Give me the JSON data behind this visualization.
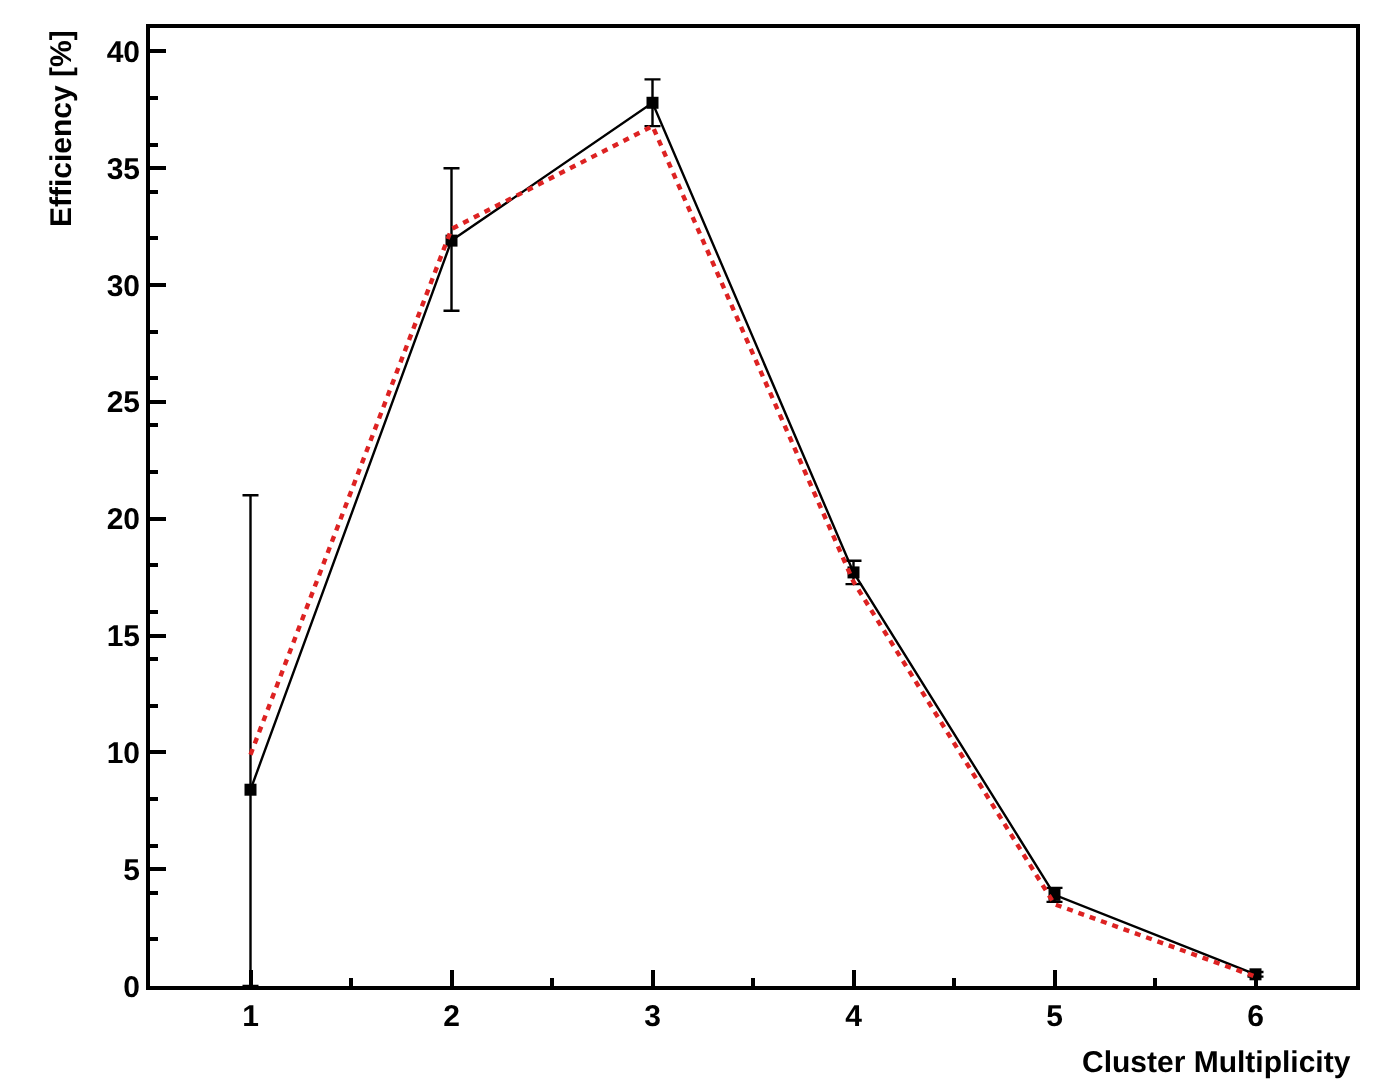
{
  "chart_data": {
    "type": "line",
    "xlabel": "Cluster Multiplicity",
    "ylabel": "Efficiency [%]",
    "x": [
      1,
      2,
      3,
      4,
      5,
      6
    ],
    "series": [
      {
        "color": "#000000",
        "values": [
          8.4,
          31.9,
          37.8,
          17.7,
          3.9,
          0.5
        ],
        "errors": [
          [
            0,
            21
          ],
          [
            28.9,
            35.0
          ],
          [
            36.8,
            38.8
          ],
          [
            17.2,
            18.2
          ],
          [
            3.6,
            4.2
          ],
          [
            0.4,
            0.6
          ]
        ],
        "marker": "square",
        "line_style": "solid"
      },
      {
        "color": "#dd2222",
        "values": [
          9.9,
          32.4,
          36.8,
          17.3,
          3.5,
          0.4
        ],
        "marker": "none",
        "line_style": "dotted"
      }
    ],
    "xlim": [
      0.5,
      6.5
    ],
    "xticks": [
      1,
      2,
      3,
      4,
      5,
      6
    ],
    "ylim": [
      0,
      41
    ],
    "yticks": [
      0,
      5,
      10,
      15,
      20,
      25,
      30,
      35,
      40
    ],
    "legend": false
  }
}
